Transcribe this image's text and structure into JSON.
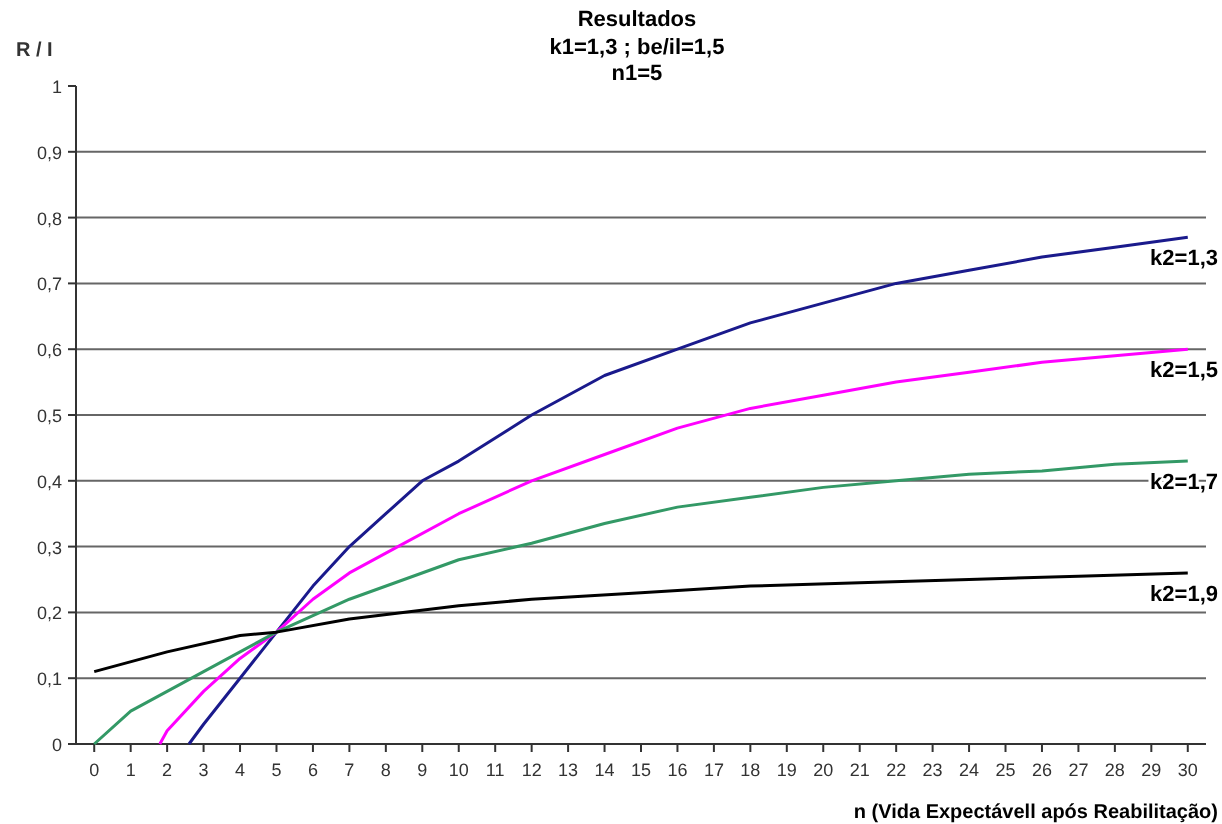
{
  "chart_data": {
    "type": "line",
    "title": "Resultados",
    "subtitle": "k1=1,3 ;  be/il=1,5\nn1=5",
    "xlabel": "n  (Vida Expectávell após Reabilitação)",
    "ylabel": "R / I",
    "xlim": [
      -0.5,
      30.5
    ],
    "xticks": [
      0,
      1,
      2,
      3,
      4,
      5,
      6,
      7,
      8,
      9,
      10,
      11,
      12,
      13,
      14,
      15,
      16,
      17,
      18,
      19,
      20,
      21,
      22,
      23,
      24,
      25,
      26,
      27,
      28,
      29,
      30
    ],
    "ylim": [
      0,
      1
    ],
    "yticks": [
      0,
      {
        "value": 0.1,
        "label": "0,1"
      },
      {
        "value": 0.2,
        "label": "0,2"
      },
      {
        "value": 0.3,
        "label": "0,3"
      },
      {
        "value": 0.4,
        "label": "0,4"
      },
      {
        "value": 0.5,
        "label": "0,5"
      },
      {
        "value": 0.6,
        "label": "0,6"
      },
      {
        "value": 0.7,
        "label": "0,7"
      },
      {
        "value": 0.8,
        "label": "0,8"
      },
      {
        "value": 0.9,
        "label": "0,9"
      },
      1
    ],
    "grid": "y",
    "legend": false,
    "marker": "none",
    "line_style": "solid",
    "series": [
      {
        "name": "k2=1,3",
        "color": "#1a1a8c",
        "x": [
          2.6,
          3,
          4,
          5,
          6,
          7,
          8,
          9,
          10,
          12,
          14,
          16,
          18,
          20,
          22,
          24,
          26,
          28,
          30
        ],
        "values": [
          0,
          0.03,
          0.1,
          0.17,
          0.24,
          0.3,
          0.35,
          0.4,
          0.43,
          0.5,
          0.56,
          0.6,
          0.64,
          0.67,
          0.7,
          0.72,
          0.74,
          0.755,
          0.77
        ]
      },
      {
        "name": "k2=1,5",
        "color": "#ff00ff",
        "x": [
          1.8,
          2,
          3,
          4,
          5,
          6,
          7,
          8,
          10,
          12,
          14,
          16,
          18,
          20,
          22,
          24,
          26,
          28,
          30
        ],
        "values": [
          0,
          0.02,
          0.08,
          0.13,
          0.17,
          0.22,
          0.26,
          0.29,
          0.35,
          0.4,
          0.44,
          0.48,
          0.51,
          0.53,
          0.55,
          0.565,
          0.58,
          0.59,
          0.6
        ]
      },
      {
        "name": "k2=1,7",
        "color": "#339966",
        "x": [
          0,
          1,
          3,
          5,
          7,
          10,
          12,
          14,
          16,
          18,
          20,
          22,
          24,
          26,
          28,
          30
        ],
        "values": [
          0,
          0.05,
          0.11,
          0.17,
          0.22,
          0.28,
          0.305,
          0.335,
          0.36,
          0.375,
          0.39,
          0.4,
          0.41,
          0.415,
          0.425,
          0.43
        ]
      },
      {
        "name": "k2=1,9",
        "color": "#000000",
        "x": [
          0,
          2,
          4,
          5,
          7,
          10,
          12,
          15,
          18,
          21,
          24,
          27,
          30
        ],
        "values": [
          0.11,
          0.14,
          0.165,
          0.17,
          0.19,
          0.21,
          0.22,
          0.23,
          0.24,
          0.245,
          0.25,
          0.255,
          0.26
        ]
      }
    ]
  }
}
